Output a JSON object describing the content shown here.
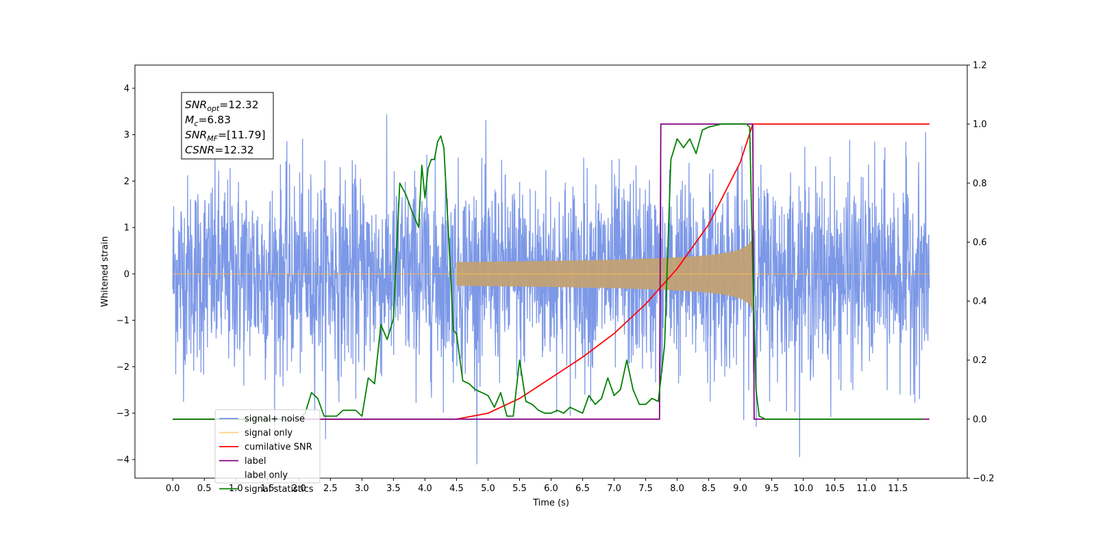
{
  "chart_data": {
    "type": "line",
    "xlabel": "Time (s)",
    "ylabel": "Whitened strain",
    "xlim": [
      -0.6,
      12.6
    ],
    "ylim": [
      -4.4,
      4.5
    ],
    "y2lim": [
      -0.2,
      1.2
    ],
    "x_ticks": [
      0.0,
      0.5,
      1.0,
      1.5,
      2.0,
      2.5,
      3.0,
      3.5,
      4.0,
      4.5,
      5.0,
      5.5,
      6.0,
      6.5,
      7.0,
      7.5,
      8.0,
      8.5,
      9.0,
      9.5,
      10.0,
      10.5,
      11.0,
      11.5
    ],
    "x_tick_labels": [
      "0.0",
      "0.5",
      "1.0",
      "1.5",
      "2.0",
      "2.5",
      "3.0",
      "3.5",
      "4.0",
      "4.5",
      "5.0",
      "5.5",
      "6.0",
      "6.5",
      "7.0",
      "7.5",
      "8.0",
      "8.5",
      "9.0",
      "9.5",
      "10.0",
      "10.5",
      "11.0",
      "11.5"
    ],
    "y_ticks": [
      -4,
      -3,
      -2,
      -1,
      0,
      1,
      2,
      3,
      4
    ],
    "y_tick_labels": [
      "−4",
      "−3",
      "−2",
      "−1",
      "0",
      "1",
      "2",
      "3",
      "4"
    ],
    "y2_ticks": [
      -0.2,
      0.0,
      0.2,
      0.4,
      0.6,
      0.8,
      1.0,
      1.2
    ],
    "y2_tick_labels": [
      "−0.2",
      "0.0",
      "0.2",
      "0.4",
      "0.6",
      "0.8",
      "1.0",
      "1.2"
    ],
    "grid": false,
    "legend_placement": "lower-left",
    "annotation": {
      "lines": [
        {
          "base": "SNR",
          "sub": "opt",
          "rest": "=12.32"
        },
        {
          "base": "M",
          "sub": "c",
          "rest": "=6.83"
        },
        {
          "base": "SNR",
          "sub": "MF",
          "rest": "=[11.79]"
        },
        {
          "base": "CSNR",
          "sub": "",
          "rest": "=12.32"
        }
      ]
    },
    "series": [
      {
        "name": "signal+ noise",
        "color": "#7592e6",
        "axis": "left",
        "description_key": "noise",
        "noise_sigma": 1.05,
        "x_range": [
          0.0,
          12.0
        ]
      },
      {
        "name": "signal only",
        "color": "#ffb74d",
        "axis": "left",
        "chirp_start": 4.5,
        "chirp_end": 9.2,
        "peak_amplitude": 0.8
      },
      {
        "name": "cumilative SNR",
        "color": "#ff0000",
        "axis": "right",
        "x": [
          0.0,
          4.5,
          5.0,
          5.5,
          6.0,
          6.5,
          7.0,
          7.5,
          8.0,
          8.5,
          9.0,
          9.2,
          12.0
        ],
        "values": [
          0.0,
          0.0,
          0.02,
          0.07,
          0.14,
          0.21,
          0.29,
          0.39,
          0.51,
          0.66,
          0.87,
          1.0,
          1.0
        ]
      },
      {
        "name": "label",
        "color": "#800080",
        "axis": "right",
        "x": [
          0.0,
          7.72,
          7.74,
          9.2,
          9.22,
          12.0
        ],
        "values": [
          0.0,
          0.0,
          1.0,
          1.0,
          0.0,
          0.0
        ]
      },
      {
        "name": "label only",
        "color": "#000000",
        "axis": "right",
        "hidden": true
      },
      {
        "name": "signal statistics",
        "color": "#008000",
        "axis": "right",
        "x": [
          0.0,
          2.0,
          2.1,
          2.2,
          2.3,
          2.4,
          2.5,
          2.6,
          2.7,
          2.8,
          2.9,
          3.0,
          3.1,
          3.2,
          3.3,
          3.4,
          3.5,
          3.6,
          3.7,
          3.8,
          3.9,
          3.95,
          4.0,
          4.05,
          4.1,
          4.15,
          4.2,
          4.25,
          4.3,
          4.35,
          4.4,
          4.45,
          4.5,
          4.6,
          4.7,
          4.8,
          4.9,
          5.0,
          5.1,
          5.2,
          5.3,
          5.4,
          5.5,
          5.6,
          5.7,
          5.8,
          5.9,
          6.0,
          6.1,
          6.2,
          6.3,
          6.4,
          6.5,
          6.6,
          6.7,
          6.8,
          6.9,
          7.0,
          7.1,
          7.2,
          7.3,
          7.4,
          7.5,
          7.6,
          7.7,
          7.8,
          7.9,
          8.0,
          8.1,
          8.2,
          8.3,
          8.4,
          8.5,
          8.7,
          9.0,
          9.1,
          9.15,
          9.2,
          9.25,
          9.3,
          9.4,
          9.5,
          9.6,
          11.0,
          11.9
        ],
        "values": [
          0.0,
          0.0,
          0.02,
          0.09,
          0.07,
          0.01,
          0.01,
          0.01,
          0.03,
          0.03,
          0.03,
          0.01,
          0.14,
          0.12,
          0.32,
          0.27,
          0.34,
          0.8,
          0.76,
          0.7,
          0.65,
          0.86,
          0.75,
          0.85,
          0.88,
          0.88,
          0.94,
          0.96,
          0.92,
          0.72,
          0.52,
          0.3,
          0.29,
          0.13,
          0.12,
          0.1,
          0.09,
          0.08,
          0.04,
          0.09,
          0.01,
          0.01,
          0.2,
          0.06,
          0.05,
          0.03,
          0.02,
          0.02,
          0.03,
          0.02,
          0.04,
          0.03,
          0.02,
          0.08,
          0.05,
          0.07,
          0.14,
          0.08,
          0.1,
          0.2,
          0.1,
          0.05,
          0.05,
          0.07,
          0.06,
          0.25,
          0.88,
          0.95,
          0.92,
          0.95,
          0.9,
          0.98,
          0.99,
          1.0,
          1.0,
          1.0,
          0.99,
          0.5,
          0.1,
          0.01,
          0.0,
          0.0,
          0.0,
          0.0,
          0.0
        ]
      }
    ]
  }
}
